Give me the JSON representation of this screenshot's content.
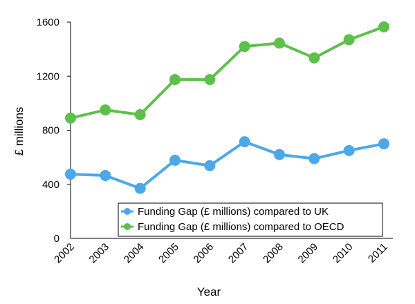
{
  "chart_data": {
    "type": "line",
    "title": "",
    "xlabel": "Year",
    "ylabel": "£ millions",
    "categories": [
      "2002",
      "2003",
      "2004",
      "2005",
      "2006",
      "2007",
      "2008",
      "2009",
      "2010",
      "2011"
    ],
    "ylim": [
      0,
      1600
    ],
    "yticks": [
      0,
      400,
      800,
      1200,
      1600
    ],
    "grid": false,
    "legend_position": "bottom-right",
    "series": [
      {
        "name": "Funding Gap (£ millions) compared to UK",
        "color": "#4da8e8",
        "values": [
          475,
          465,
          370,
          578,
          538,
          715,
          620,
          590,
          650,
          700
        ]
      },
      {
        "name": "Funding Gap (£ millions) compared to OECD",
        "color": "#5ec04c",
        "values": [
          890,
          950,
          915,
          1175,
          1175,
          1420,
          1445,
          1335,
          1470,
          1565
        ]
      }
    ]
  }
}
